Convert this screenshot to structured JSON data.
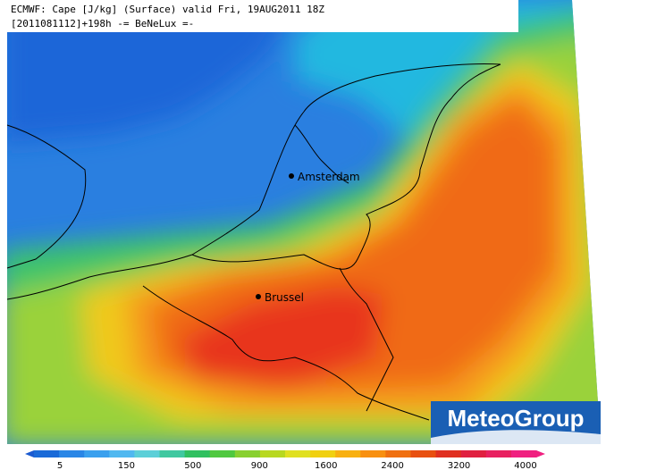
{
  "header": {
    "line1": "ECMWF: Cape [J/kg] (Surface) valid Fri, 19AUG2011 18Z",
    "line2": "[2011081112]+198h  -= BeNeLux =-"
  },
  "cities": [
    {
      "label": "Amsterdam"
    },
    {
      "label": "Brussel"
    }
  ],
  "logo": "MeteoGroup",
  "colorbar": {
    "ticks": [
      5,
      150,
      500,
      900,
      1600,
      2400,
      3200,
      4000
    ]
  }
}
